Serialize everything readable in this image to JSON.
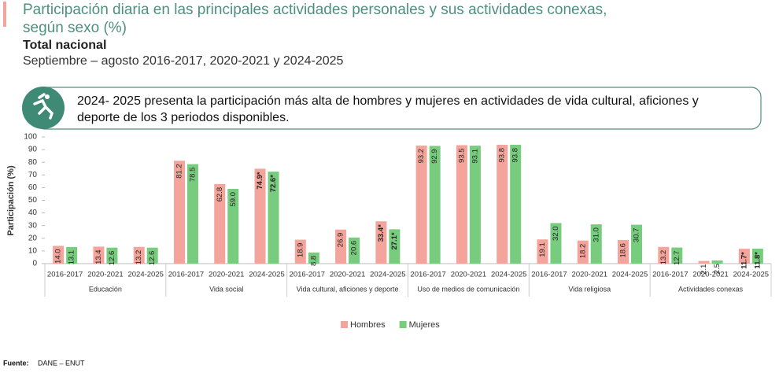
{
  "chart_data": {
    "type": "bar",
    "title": [
      "Participación diaria en las principales actividades personales y sus actividades conexas,",
      "según sexo (%)"
    ],
    "subtitle": "Total nacional",
    "period": "Septiembre – agosto 2016-2017, 2020-2021 y 2024-2025",
    "callout": [
      "2024- 2025 presenta la participación más alta de hombres y mujeres en actividades de vida cultural, aficiones y",
      "deporte de los 3 periodos disponibles."
    ],
    "y_label": "Participación (%)",
    "groups": [
      {
        "name": "Educación",
        "categories": [
          "2016-2017",
          "2020-2021",
          "2024-2025"
        ]
      },
      {
        "name": "Vida social",
        "categories": [
          "2016-2017",
          "2020-2021",
          "2024-2025"
        ]
      },
      {
        "name": "Vida cultural, aficiones y deporte",
        "categories": [
          "2016-2017",
          "2020-2021",
          "2024-2025"
        ]
      },
      {
        "name": "Uso de medios de comunicación",
        "categories": [
          "2016-2017",
          "2020-2021",
          "2024-2025"
        ]
      },
      {
        "name": "Vida religiosa",
        "categories": [
          "2016-2017",
          "2020-2021",
          "2024-2025"
        ]
      },
      {
        "name": "Actividades conexas",
        "categories": [
          "2016-2017",
          "2020-2021",
          "2024-2025"
        ]
      }
    ],
    "series": [
      {
        "name": "Hombres",
        "color": "#f4a49a",
        "values": [
          14.0,
          13.4,
          13.2,
          81.2,
          62.8,
          74.9,
          18.9,
          26.9,
          33.4,
          93.2,
          93.5,
          93.8,
          19.1,
          18.2,
          18.6,
          13.2,
          2.1,
          11.7
        ],
        "value_labels": [
          "14.0",
          "13.4",
          "13.2",
          "81.2",
          "62.8",
          "74.9*",
          "18.9",
          "26.9",
          "33.4*",
          "93.2",
          "93.5",
          "93.8",
          "19.1",
          "18.2",
          "18.6",
          "13.2",
          "2.1",
          "11.7*"
        ]
      },
      {
        "name": "Mujeres",
        "color": "#77cc7e",
        "values": [
          13.1,
          12.6,
          12.6,
          78.5,
          59.0,
          72.6,
          8.8,
          20.6,
          27.1,
          92.9,
          93.1,
          93.8,
          32.0,
          31.0,
          30.7,
          12.7,
          2.5,
          11.8
        ],
        "value_labels": [
          "13.1",
          "12.6",
          "12.6",
          "78.5",
          "59.0",
          "72.6*",
          "8.8",
          "20.6",
          "27.1*",
          "92.9",
          "93.1",
          "93.8",
          "32.0",
          "31.0",
          "30.7",
          "12.7",
          "2.5",
          "11.8*"
        ]
      }
    ],
    "ylim": [
      0,
      100
    ],
    "yticks": [
      0,
      10,
      20,
      30,
      40,
      50,
      60,
      70,
      80,
      90,
      100
    ],
    "source_label": "Fuente:",
    "source": "DANE – ENUT"
  }
}
